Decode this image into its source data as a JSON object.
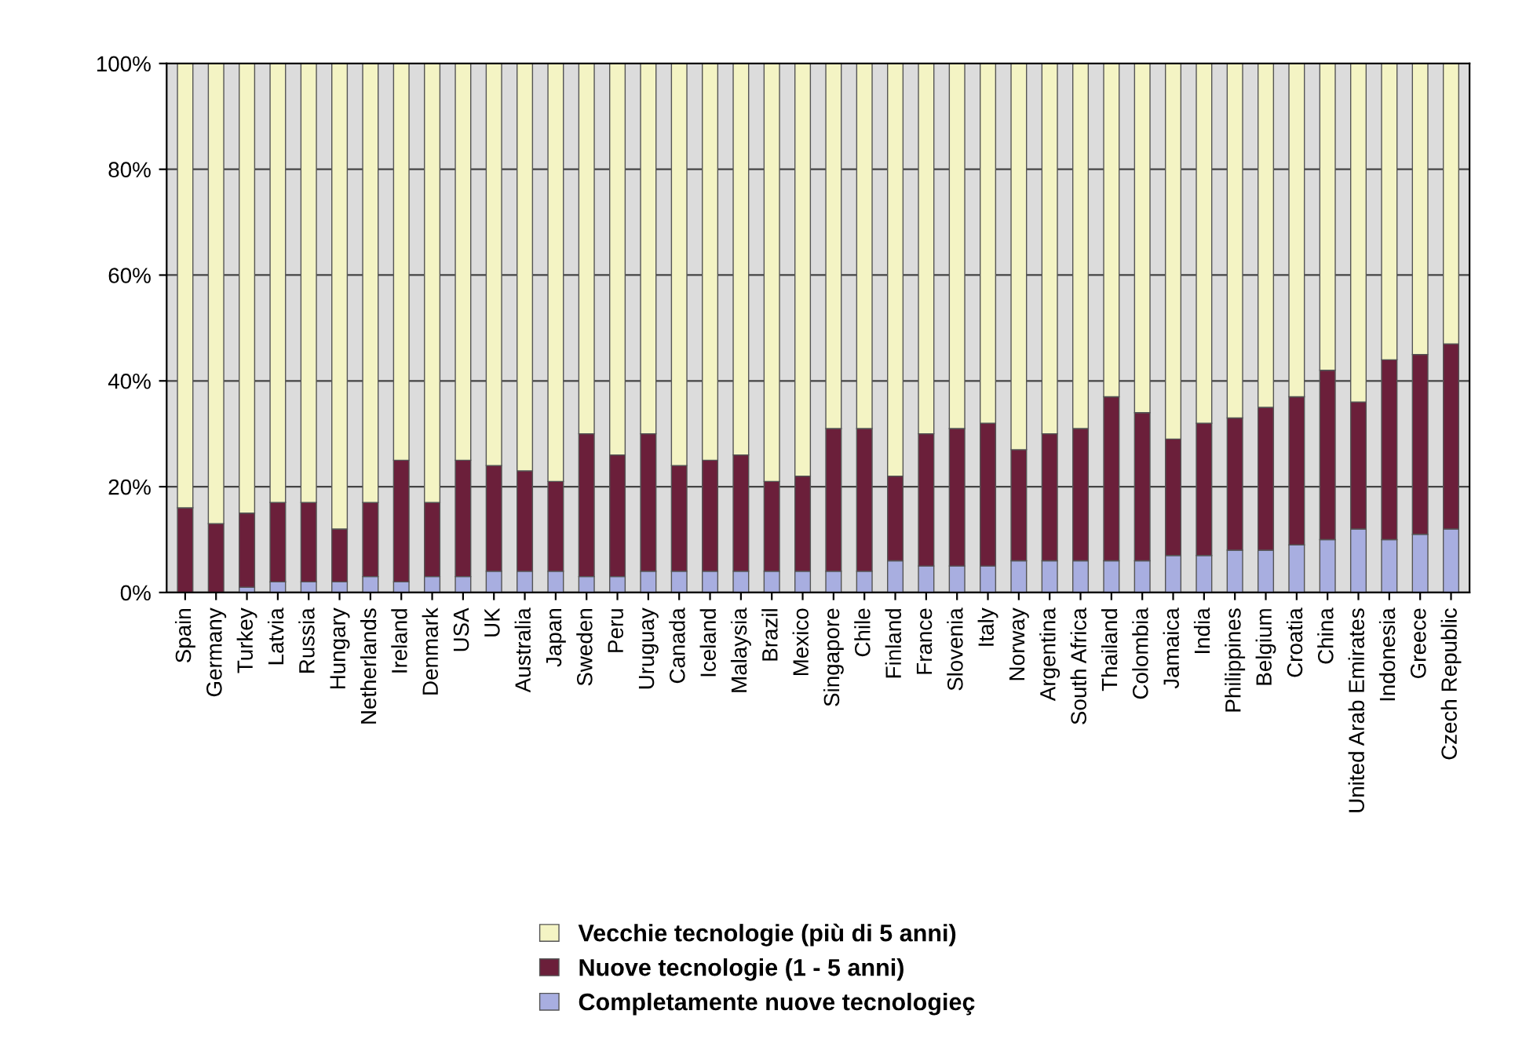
{
  "chart_data": {
    "type": "bar",
    "stacked": true,
    "categories": [
      "Spain",
      "Germany",
      "Turkey",
      "Latvia",
      "Russia",
      "Hungary",
      "Netherlands",
      "Ireland",
      "Denmark",
      "USA",
      "UK",
      "Australia",
      "Japan",
      "Sweden",
      "Peru",
      "Uruguay",
      "Canada",
      "Iceland",
      "Malaysia",
      "Brazil",
      "Mexico",
      "Singapore",
      "Chile",
      "Finland",
      "France",
      "Slovenia",
      "Italy",
      "Norway",
      "Argentina",
      "South Africa",
      "Thailand",
      "Colombia",
      "Jamaica",
      "India",
      "Philippines",
      "Belgium",
      "Croatia",
      "China",
      "United Arab Emirates",
      "Indonesia",
      "Greece",
      "Czech Republic"
    ],
    "series": [
      {
        "name": "Completamente nuove tecnologieç",
        "color": "#a8aee0",
        "values": [
          0,
          0,
          1,
          2,
          2,
          2,
          3,
          2,
          3,
          3,
          4,
          4,
          4,
          3,
          3,
          4,
          4,
          4,
          4,
          4,
          4,
          4,
          4,
          6,
          5,
          5,
          5,
          6,
          6,
          6,
          6,
          6,
          7,
          7,
          8,
          8,
          9,
          10,
          12,
          10,
          11,
          12
        ]
      },
      {
        "name": "Nuove tecnologie (1 - 5 anni)",
        "color": "#6b1f3a",
        "values": [
          16,
          13,
          14,
          15,
          15,
          10,
          14,
          23,
          14,
          22,
          20,
          19,
          17,
          27,
          23,
          26,
          20,
          21,
          22,
          17,
          18,
          27,
          27,
          16,
          25,
          26,
          27,
          21,
          24,
          25,
          31,
          28,
          22,
          25,
          25,
          27,
          28,
          32,
          24,
          34,
          34,
          35
        ]
      },
      {
        "name": "Vecchie tecnologie (più di 5 anni)",
        "color": "#f4f4c4",
        "values": [
          84,
          87,
          85,
          83,
          83,
          88,
          83,
          75,
          83,
          75,
          76,
          77,
          79,
          70,
          74,
          70,
          76,
          75,
          74,
          79,
          78,
          69,
          69,
          78,
          70,
          69,
          68,
          73,
          70,
          69,
          63,
          66,
          71,
          68,
          67,
          65,
          63,
          58,
          64,
          56,
          55,
          53
        ]
      }
    ],
    "ylim": [
      0,
      100
    ],
    "yticks": [
      {
        "value": 0,
        "label": "0%"
      },
      {
        "value": 20,
        "label": "20%"
      },
      {
        "value": 40,
        "label": "40%"
      },
      {
        "value": 60,
        "label": "60%"
      },
      {
        "value": 80,
        "label": "80%"
      },
      {
        "value": 100,
        "label": "100%"
      }
    ],
    "grid": "y",
    "legend": "bottom"
  }
}
